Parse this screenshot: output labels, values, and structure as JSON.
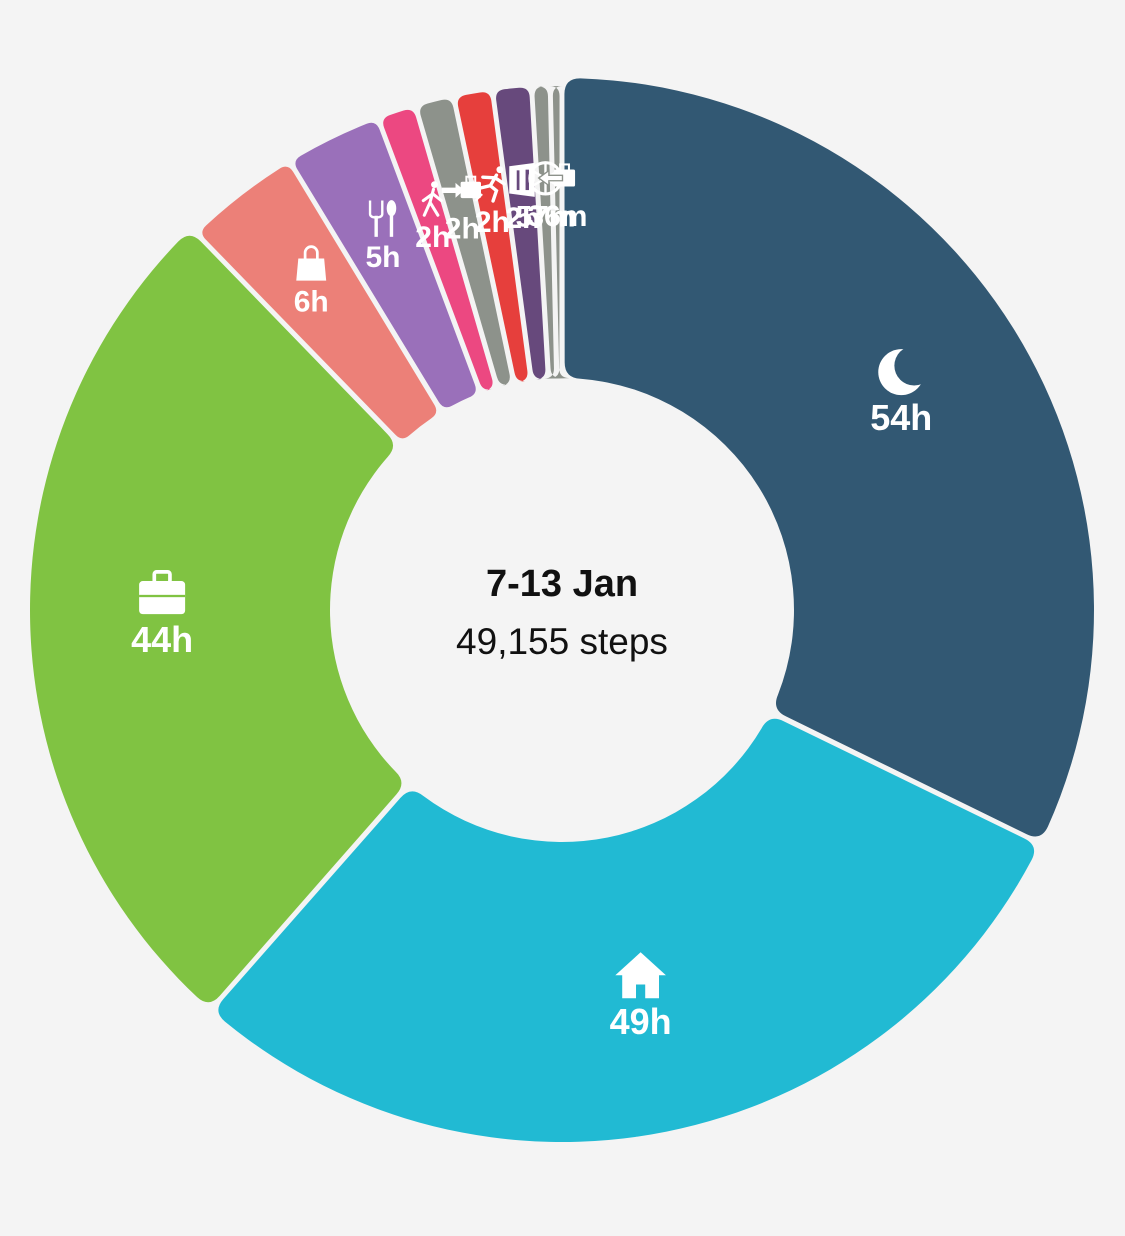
{
  "center": {
    "title": "7-13 Jan",
    "subtitle": "49,155 steps"
  },
  "chart_data": {
    "type": "pie",
    "variant": "donut",
    "categories": [
      "Sleep",
      "Home",
      "Work",
      "Shopping",
      "Eating",
      "Walking",
      "Commute to work",
      "Sport",
      "Restaurant",
      "Driving",
      "Commute from work"
    ],
    "values": [
      "54h",
      "49h",
      "44h",
      "6h",
      "5h",
      "2h",
      "2h",
      "2h",
      "2h",
      "57m",
      "36m"
    ],
    "minutes": [
      3240,
      2940,
      2640,
      360,
      300,
      120,
      120,
      120,
      120,
      57,
      36
    ],
    "icons": [
      "moon-icon",
      "house-icon",
      "briefcase-icon",
      "shopping-bag-icon",
      "fork-spoon-icon",
      "walking-icon",
      "briefcase-arrow-in-icon",
      "running-icon",
      "menu-fork-knife-icon",
      "steering-wheel-icon",
      "briefcase-arrow-out-icon"
    ],
    "colors": [
      "#325873",
      "#21bad3",
      "#80c342",
      "#ec8078",
      "#9a70ba",
      "#ec4881",
      "#8d928b",
      "#e63f3c",
      "#67497c",
      "#8d928b",
      "#8d928b"
    ]
  }
}
